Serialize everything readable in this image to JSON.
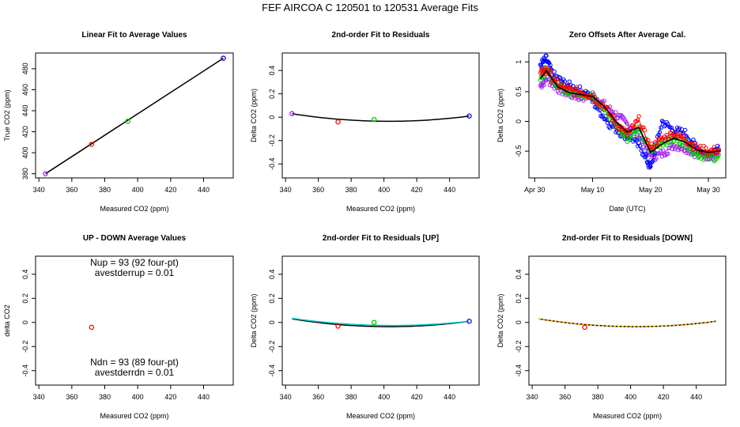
{
  "figure": {
    "title": "FEF   AIRCOA C   120501 to 120531   Average Fits"
  },
  "chart_data": [
    {
      "type": "scatter",
      "title": "Linear Fit to Average Values",
      "xlabel": "Measured CO2 (ppm)",
      "ylabel": "True CO2 (ppm)",
      "xlim": [
        338,
        458
      ],
      "ylim": [
        376,
        495
      ],
      "xticks": [
        340,
        360,
        380,
        400,
        420,
        440
      ],
      "yticks": [
        380,
        400,
        420,
        440,
        460,
        480
      ],
      "points": [
        {
          "x": 344,
          "y": 380,
          "color": "#a020f0"
        },
        {
          "x": 372,
          "y": 408,
          "color": "#ff0000"
        },
        {
          "x": 394,
          "y": 430,
          "color": "#00cc00"
        },
        {
          "x": 452,
          "y": 490,
          "color": "#0000ff"
        }
      ],
      "fit_line": {
        "x": [
          344,
          452
        ],
        "y": [
          380,
          490
        ],
        "color": "#000000"
      }
    },
    {
      "type": "scatter",
      "title": "2nd-order Fit to Residuals",
      "xlabel": "Measured CO2 (ppm)",
      "ylabel": "Delta CO2 (ppm)",
      "xlim": [
        338,
        458
      ],
      "ylim": [
        -0.52,
        0.55
      ],
      "xticks": [
        340,
        360,
        380,
        400,
        420,
        440
      ],
      "yticks": [
        -0.4,
        -0.2,
        0.0,
        0.2,
        0.4
      ],
      "points": [
        {
          "x": 344,
          "y": 0.03,
          "color": "#a020f0"
        },
        {
          "x": 372,
          "y": -0.04,
          "color": "#ff0000"
        },
        {
          "x": 394,
          "y": -0.02,
          "color": "#00cc00"
        },
        {
          "x": 452,
          "y": 0.01,
          "color": "#0000ff"
        }
      ],
      "curves": [
        {
          "color": "#000000",
          "x": [
            344,
            452
          ],
          "coef": {
            "vertex_x": 403,
            "vertex_y": -0.035,
            "a": 1.86e-05
          }
        }
      ]
    },
    {
      "type": "line",
      "title": "Zero Offsets After Average Cal.",
      "xlabel": "Date (UTC)",
      "ylabel": "Delta CO2 (ppm)",
      "xlim": [
        "Apr 29",
        "Jun 2"
      ],
      "ylim": [
        -0.95,
        1.15
      ],
      "xticks": [
        "Apr 30",
        "May 10",
        "May 20",
        "May 30"
      ],
      "yticks": [
        -0.5,
        0.0,
        0.5,
        1.0
      ],
      "series": [
        {
          "color": "#a020f0",
          "x": [
            "May 1",
            "May 2",
            "May 4",
            "May 6",
            "May 8",
            "May 10",
            "May 12",
            "May 14",
            "May 16",
            "May 18",
            "May 20",
            "May 22",
            "May 24",
            "May 26",
            "May 28",
            "May 30",
            "Jun 1"
          ],
          "y": [
            0.6,
            0.72,
            0.55,
            0.45,
            0.4,
            0.45,
            0.28,
            0.12,
            -0.05,
            -0.22,
            -0.6,
            -0.55,
            -0.4,
            -0.45,
            -0.55,
            -0.58,
            -0.55
          ]
        },
        {
          "color": "#0000ff",
          "x": [
            "May 1",
            "May 2",
            "May 3",
            "May 5",
            "May 7",
            "May 9",
            "May 11",
            "May 13",
            "May 15",
            "May 17",
            "May 19",
            "May 20",
            "May 22",
            "May 24",
            "May 26",
            "May 28",
            "May 30",
            "Jun 1"
          ],
          "y": [
            0.95,
            1.05,
            0.8,
            0.65,
            0.55,
            0.48,
            0.2,
            -0.05,
            -0.2,
            -0.3,
            -0.55,
            -0.8,
            0.0,
            -0.15,
            -0.2,
            -0.45,
            -0.55,
            -0.4
          ]
        },
        {
          "color": "#00cc00",
          "x": [
            "May 1",
            "May 2",
            "May 4",
            "May 6",
            "May 8",
            "May 10",
            "May 12",
            "May 14",
            "May 16",
            "May 18",
            "May 20",
            "May 22",
            "May 24",
            "May 26",
            "May 28",
            "May 30",
            "Jun 1"
          ],
          "y": [
            0.75,
            0.85,
            0.6,
            0.5,
            0.48,
            0.4,
            0.2,
            -0.05,
            -0.28,
            -0.15,
            -0.48,
            -0.35,
            -0.3,
            -0.35,
            -0.55,
            -0.6,
            -0.6
          ]
        },
        {
          "color": "#ff0000",
          "x": [
            "May 1",
            "May 2",
            "May 4",
            "May 6",
            "May 8",
            "May 10",
            "May 12",
            "May 14",
            "May 16",
            "May 18",
            "May 20",
            "May 22",
            "May 24",
            "May 26",
            "May 28",
            "May 30",
            "Jun 1"
          ],
          "y": [
            0.8,
            0.88,
            0.62,
            0.52,
            0.5,
            0.42,
            0.25,
            -0.02,
            -0.22,
            0.02,
            -0.45,
            -0.3,
            -0.2,
            -0.3,
            -0.45,
            -0.5,
            -0.48
          ]
        },
        {
          "color": "#000000",
          "x": [
            "May 1",
            "May 2",
            "May 4",
            "May 6",
            "May 8",
            "May 10",
            "May 12",
            "May 14",
            "May 16",
            "May 18",
            "May 20",
            "May 22",
            "May 24",
            "May 26",
            "May 28",
            "May 30",
            "Jun 1"
          ],
          "y": [
            0.72,
            0.85,
            0.58,
            0.48,
            0.45,
            0.42,
            0.25,
            0.0,
            -0.18,
            -0.1,
            -0.52,
            -0.38,
            -0.28,
            -0.35,
            -0.48,
            -0.52,
            -0.5
          ]
        }
      ]
    },
    {
      "type": "scatter",
      "title": "UP - DOWN Average Values",
      "xlabel": "Measured CO2 (ppm)",
      "ylabel": "delta CO2",
      "xlim": [
        338,
        458
      ],
      "ylim": [
        -0.52,
        0.55
      ],
      "xticks": [
        340,
        360,
        380,
        400,
        420,
        440
      ],
      "yticks": [
        -0.4,
        -0.2,
        0.0,
        0.2,
        0.4
      ],
      "points": [
        {
          "x": 372,
          "y": -0.04,
          "color": "#ff0000"
        }
      ],
      "annotations": [
        "Nup = 93 (92 four-pt)",
        "avestderrup =  0.01",
        "Ndn = 93 (89 four-pt)",
        "avestderrdn =  0.01"
      ]
    },
    {
      "type": "scatter",
      "title": "2nd-order Fit to Residuals [UP]",
      "xlabel": "Measured CO2 (ppm)",
      "ylabel": "Delta CO2 (ppm)",
      "xlim": [
        338,
        458
      ],
      "ylim": [
        -0.52,
        0.55
      ],
      "xticks": [
        340,
        360,
        380,
        400,
        420,
        440
      ],
      "yticks": [
        -0.4,
        -0.2,
        0.0,
        0.2,
        0.4
      ],
      "points": [
        {
          "x": 372,
          "y": -0.03,
          "color": "#ff0000"
        },
        {
          "x": 394,
          "y": 0.0,
          "color": "#00cc00"
        },
        {
          "x": 452,
          "y": 0.01,
          "color": "#0000ff"
        }
      ],
      "curves": [
        {
          "color": "#000000",
          "x": [
            344,
            452
          ],
          "coef": {
            "vertex_x": 403,
            "vertex_y": -0.035,
            "a": 1.86e-05
          }
        },
        {
          "color": "#00cccc",
          "x": [
            344,
            452
          ],
          "coef": {
            "vertex_x": 405,
            "vertex_y": -0.025,
            "a": 1.6e-05
          }
        }
      ]
    },
    {
      "type": "scatter",
      "title": "2nd-order Fit to Residuals [DOWN]",
      "xlabel": "Measured CO2 (ppm)",
      "ylabel": "Delta CO2 (ppm)",
      "xlim": [
        338,
        458
      ],
      "ylim": [
        -0.52,
        0.55
      ],
      "xticks": [
        340,
        360,
        380,
        400,
        420,
        440
      ],
      "yticks": [
        -0.4,
        -0.2,
        0.0,
        0.2,
        0.4
      ],
      "points": [
        {
          "x": 372,
          "y": -0.04,
          "color": "#ff0000"
        }
      ],
      "curves": [
        {
          "color": "#000000",
          "x": [
            344,
            452
          ],
          "coef": {
            "vertex_x": 403,
            "vertex_y": -0.035,
            "a": 1.86e-05
          }
        },
        {
          "color": "#ffa500",
          "dashed": true,
          "x": [
            344,
            452
          ],
          "coef": {
            "vertex_x": 403,
            "vertex_y": -0.035,
            "a": 1.86e-05
          }
        }
      ]
    }
  ]
}
